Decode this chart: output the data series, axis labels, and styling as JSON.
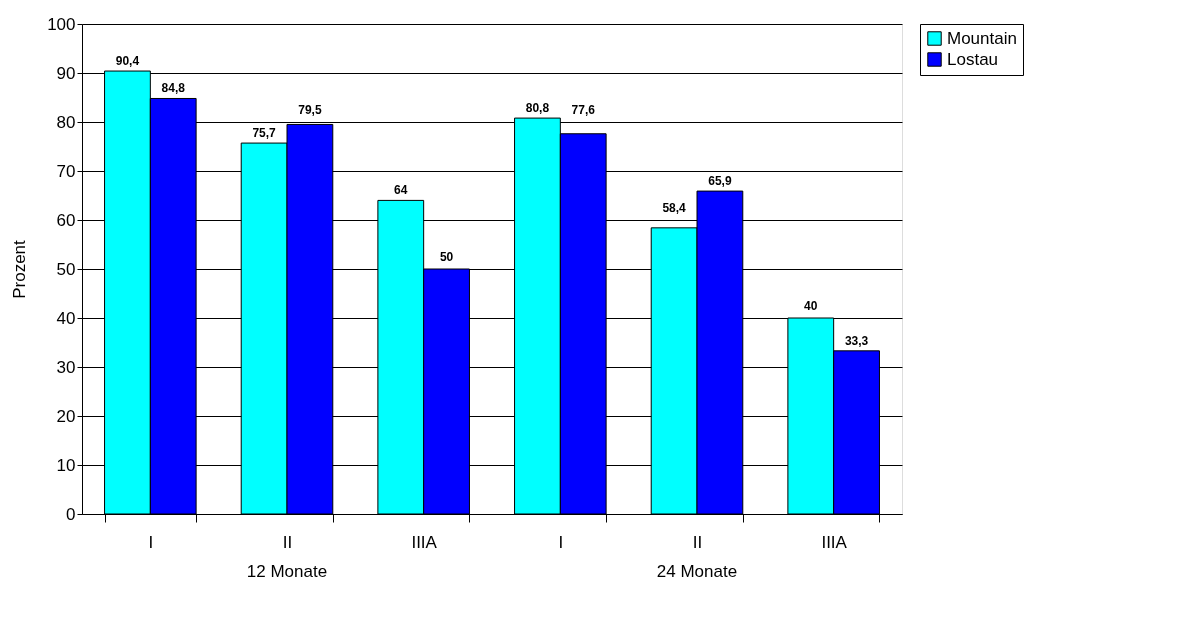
{
  "chart_data": {
    "type": "bar",
    "ylabel": "Prozent",
    "categories": [
      "I",
      "II",
      "IIIA",
      "I",
      "II",
      "IIIA"
    ],
    "series": [
      {
        "name": "Mountain",
        "color": "#00ffff",
        "values": [
          90.4,
          75.7,
          64,
          80.8,
          58.4,
          40
        ],
        "value_labels": [
          "90,4",
          "75,7",
          "64",
          "80,8",
          "58,4",
          "40"
        ]
      },
      {
        "name": "Lostau",
        "color": "#0000ff",
        "values": [
          84.8,
          79.5,
          50,
          77.6,
          65.9,
          33.3
        ],
        "value_labels": [
          "84,8",
          "79,5",
          "50",
          "77,6",
          "65,9",
          "33,3"
        ]
      }
    ],
    "annotations": [
      "12 Monate",
      "24 Monate"
    ],
    "ylim": [
      0,
      100
    ],
    "yticks": [
      0,
      10,
      20,
      30,
      40,
      50,
      60,
      70,
      80,
      90,
      100
    ],
    "grid": "y",
    "legend": "right"
  }
}
